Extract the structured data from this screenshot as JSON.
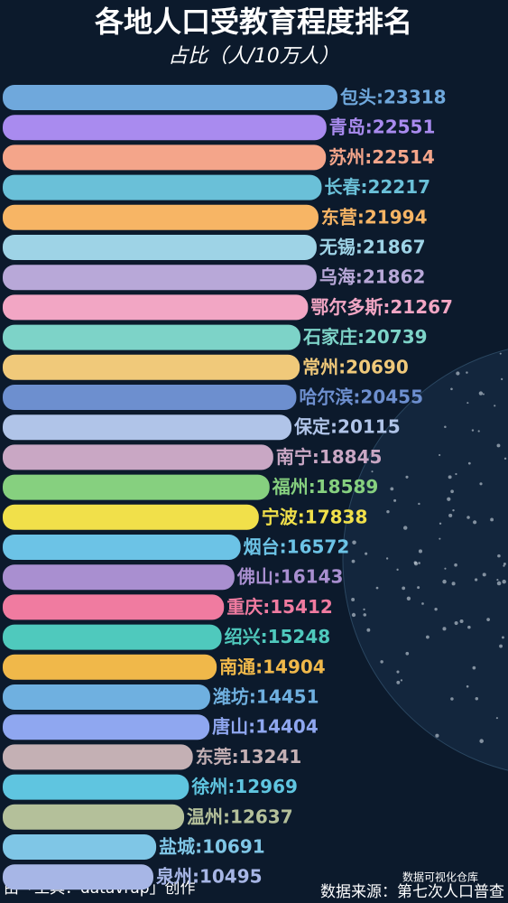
{
  "chart_data": {
    "type": "bar",
    "orientation": "horizontal",
    "title": "各地人口受教育程度排名",
    "subtitle": "占比（人/10万人）",
    "categories": [
      "包头",
      "青岛",
      "苏州",
      "长春",
      "东营",
      "无锡",
      "乌海",
      "鄂尔多斯",
      "石家庄",
      "常州",
      "哈尔滨",
      "保定",
      "南宁",
      "福州",
      "宁波",
      "烟台",
      "佛山",
      "重庆",
      "绍兴",
      "南通",
      "潍坊",
      "唐山",
      "东莞",
      "徐州",
      "温州",
      "盐城",
      "泉州"
    ],
    "values": [
      23318,
      22551,
      22514,
      22217,
      21994,
      21867,
      21862,
      21267,
      20739,
      20690,
      20455,
      20115,
      18845,
      18589,
      17838,
      16572,
      16143,
      15412,
      15248,
      14904,
      14451,
      14404,
      13241,
      12969,
      12637,
      10691,
      10495
    ],
    "value_labels": [
      "包头:23318",
      "青岛:22551",
      "苏州:22514",
      "长春:22217",
      "东营:21994",
      "无锡:21867",
      "乌海:21862",
      "鄂尔多斯:21267",
      "石家庄:20739",
      "常州:20690",
      "哈尔滨:20455",
      "保定:20115",
      "南宁:18845",
      "福州:18589",
      "宁波:17838",
      "烟台:16572",
      "佛山:16143",
      "重庆:15412",
      "绍兴:15248",
      "南通:14904",
      "潍坊:14451",
      "唐山:14404",
      "东莞:13241",
      "徐州:12969",
      "温州:12637",
      "盐城:10691",
      "泉州:10495"
    ],
    "colors": [
      "#6fa8dc",
      "#a98bef",
      "#f4a58a",
      "#6ac0d8",
      "#f7b565",
      "#9ed3e6",
      "#b8a8d8",
      "#f2a6c4",
      "#7dd3c8",
      "#f0c97a",
      "#6d8fcf",
      "#b0c4e8",
      "#c9a7c4",
      "#86d07f",
      "#f1e04a",
      "#6cc3e6",
      "#a98fd0",
      "#f07ba0",
      "#4fc9bd",
      "#f0b84a",
      "#6fb0e0",
      "#8fa7f0",
      "#c4b0b4",
      "#5fc5e0",
      "#b4c09a",
      "#7fc6e6",
      "#a7b6e6"
    ],
    "credit": "由「工具：datavrap」创作",
    "source": "数据来源：第七次人口普查",
    "watermark": "数据可视化仓库"
  }
}
